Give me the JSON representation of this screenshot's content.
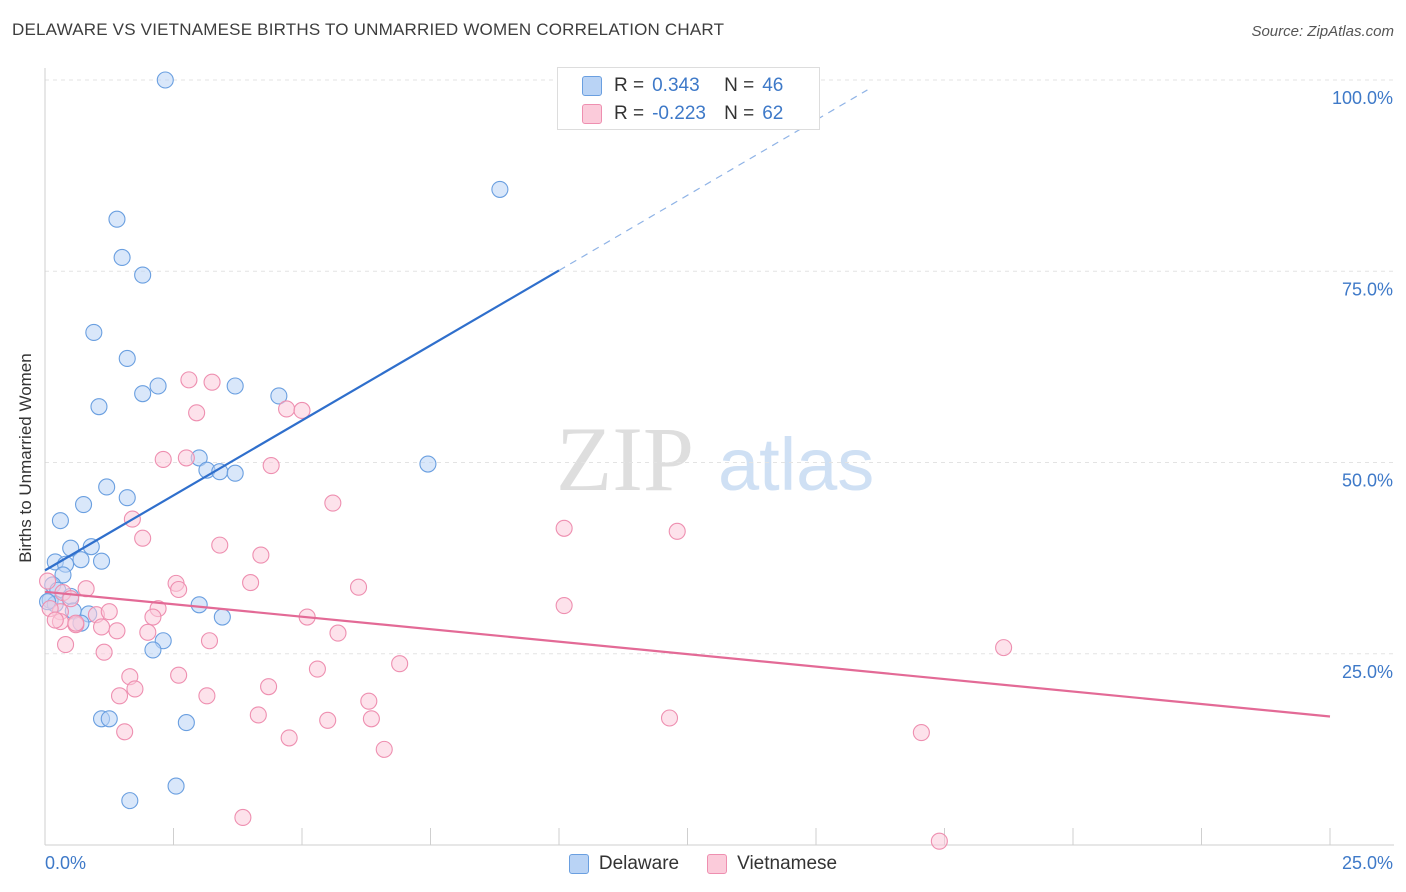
{
  "title": "DELAWARE VS VIETNAMESE BIRTHS TO UNMARRIED WOMEN CORRELATION CHART",
  "source": "Source: ZipAtlas.com",
  "watermark": {
    "zip": "ZIP",
    "atlas": "atlas"
  },
  "legend": {
    "r_label": "R =",
    "n_label": "N =",
    "rows": [
      {
        "r": "0.343",
        "n": "46",
        "color": "#3e79c8"
      },
      {
        "r": "-0.223",
        "n": "62",
        "color": "#ee8fb0"
      }
    ]
  },
  "bottom_legend": [
    "Delaware",
    "Vietnamese"
  ],
  "chart_data": {
    "type": "scatter",
    "title": "DELAWARE VS VIETNAMESE BIRTHS TO UNMARRIED WOMEN CORRELATION CHART",
    "xlabel": "",
    "ylabel": "Births to Unmarried Women",
    "xlim": [
      0,
      25
    ],
    "ylim": [
      0,
      100
    ],
    "x_tick_labels": [
      "0.0%",
      "25.0%"
    ],
    "y_tick_labels": [
      "25.0%",
      "50.0%",
      "75.0%",
      "100.0%"
    ],
    "y_ticks": [
      25,
      50,
      75,
      100
    ],
    "series": [
      {
        "name": "Delaware",
        "color": "#6a9fe0",
        "fill": "#b9d3f5",
        "trend": {
          "x0": 0,
          "y0": 35.9,
          "x1": 10,
          "y1": 75.1,
          "dash_to_x": 16,
          "dash_to_y": 98.7
        },
        "points": [
          [
            2.34,
            100
          ],
          [
            8.85,
            85.7
          ],
          [
            1.4,
            81.8
          ],
          [
            1.5,
            76.8
          ],
          [
            1.9,
            74.5
          ],
          [
            0.95,
            67
          ],
          [
            1.6,
            63.6
          ],
          [
            2.2,
            60
          ],
          [
            3.7,
            60
          ],
          [
            1.9,
            59
          ],
          [
            4.55,
            58.7
          ],
          [
            1.05,
            57.3
          ],
          [
            7.45,
            49.8
          ],
          [
            3.0,
            50.6
          ],
          [
            3.15,
            49
          ],
          [
            3.4,
            48.8
          ],
          [
            3.7,
            48.6
          ],
          [
            1.2,
            46.8
          ],
          [
            1.6,
            45.4
          ],
          [
            0.75,
            44.5
          ],
          [
            0.3,
            42.4
          ],
          [
            0.9,
            39
          ],
          [
            0.5,
            38.8
          ],
          [
            0.7,
            37.3
          ],
          [
            1.1,
            37.1
          ],
          [
            0.2,
            37
          ],
          [
            0.4,
            36.7
          ],
          [
            0.35,
            35.3
          ],
          [
            0.15,
            34
          ],
          [
            0.25,
            33.3
          ],
          [
            0.5,
            32.5
          ],
          [
            0.1,
            32
          ],
          [
            0.2,
            31.5
          ],
          [
            0.55,
            30.6
          ],
          [
            0.85,
            30.2
          ],
          [
            3.0,
            31.4
          ],
          [
            3.45,
            29.8
          ],
          [
            0.7,
            29
          ],
          [
            2.3,
            26.7
          ],
          [
            2.1,
            25.5
          ],
          [
            1.1,
            16.5
          ],
          [
            1.25,
            16.5
          ],
          [
            2.75,
            16
          ],
          [
            1.65,
            5.8
          ],
          [
            2.55,
            7.7
          ],
          [
            0.05,
            31.8
          ]
        ]
      },
      {
        "name": "Vietnamese",
        "color": "#ee8fb0",
        "fill": "#fbcbda",
        "trend": {
          "x0": 0,
          "y0": 33.1,
          "x1": 25,
          "y1": 16.8
        },
        "points": [
          [
            2.8,
            60.8
          ],
          [
            3.25,
            60.5
          ],
          [
            2.95,
            56.5
          ],
          [
            4.7,
            57
          ],
          [
            5.0,
            56.8
          ],
          [
            2.3,
            50.4
          ],
          [
            2.75,
            50.6
          ],
          [
            4.4,
            49.6
          ],
          [
            5.6,
            44.7
          ],
          [
            1.7,
            42.6
          ],
          [
            10.1,
            41.4
          ],
          [
            12.3,
            41
          ],
          [
            1.9,
            40.1
          ],
          [
            3.4,
            39.2
          ],
          [
            4.2,
            37.9
          ],
          [
            2.55,
            34.2
          ],
          [
            2.6,
            33.4
          ],
          [
            4.0,
            34.3
          ],
          [
            6.1,
            33.7
          ],
          [
            0.8,
            33.5
          ],
          [
            0.05,
            34.5
          ],
          [
            0.35,
            33
          ],
          [
            0.5,
            32.2
          ],
          [
            10.1,
            31.3
          ],
          [
            2.2,
            30.9
          ],
          [
            0.3,
            30.5
          ],
          [
            1.0,
            30.1
          ],
          [
            1.25,
            30.5
          ],
          [
            2.1,
            29.8
          ],
          [
            5.1,
            29.8
          ],
          [
            0.3,
            29.2
          ],
          [
            0.6,
            28.8
          ],
          [
            1.1,
            28.5
          ],
          [
            1.4,
            28
          ],
          [
            2.0,
            27.8
          ],
          [
            5.7,
            27.7
          ],
          [
            3.2,
            26.7
          ],
          [
            0.4,
            26.2
          ],
          [
            1.15,
            25.2
          ],
          [
            18.65,
            25.8
          ],
          [
            6.9,
            23.7
          ],
          [
            5.3,
            23
          ],
          [
            1.65,
            22
          ],
          [
            2.6,
            22.2
          ],
          [
            4.35,
            20.7
          ],
          [
            1.75,
            20.4
          ],
          [
            1.45,
            19.5
          ],
          [
            3.15,
            19.5
          ],
          [
            6.3,
            18.8
          ],
          [
            4.15,
            17
          ],
          [
            5.5,
            16.3
          ],
          [
            6.35,
            16.5
          ],
          [
            12.15,
            16.6
          ],
          [
            1.55,
            14.8
          ],
          [
            4.75,
            14
          ],
          [
            17.05,
            14.7
          ],
          [
            6.6,
            12.5
          ],
          [
            3.85,
            3.6
          ],
          [
            17.4,
            0.5
          ],
          [
            0.1,
            30.9
          ],
          [
            0.2,
            29.4
          ],
          [
            0.6,
            29
          ]
        ]
      }
    ]
  }
}
